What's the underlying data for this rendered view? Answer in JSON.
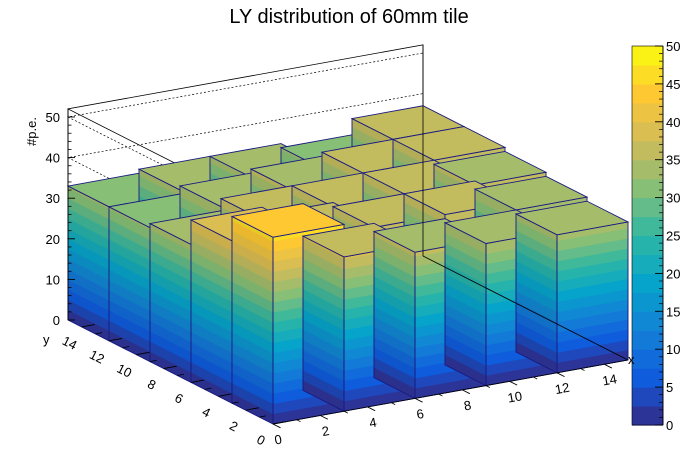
{
  "chart_data": {
    "type": "lego3d",
    "title": "LY distribution of 60mm tile",
    "zlabel": "#p.e.",
    "xlabel": "x",
    "ylabel": "y",
    "xlim": [
      0,
      15
    ],
    "ylim": [
      0,
      15
    ],
    "zlim": [
      0,
      52
    ],
    "x_bins": [
      0,
      3,
      6,
      9,
      12,
      15
    ],
    "y_bins": [
      0,
      3,
      6,
      9,
      12,
      15
    ],
    "x_ticks": [
      "0",
      "2",
      "4",
      "6",
      "8",
      "10",
      "12",
      "14"
    ],
    "y_ticks": [
      "0",
      "2",
      "4",
      "6",
      "8",
      "10",
      "12",
      "14"
    ],
    "z_ticks": [
      "0",
      "10",
      "20",
      "30",
      "40",
      "50"
    ],
    "values": [
      [
        46,
        40,
        34,
        33,
        33
      ],
      [
        38,
        38,
        37,
        35,
        34
      ],
      [
        36,
        37,
        37,
        36,
        34
      ],
      [
        35,
        37,
        37,
        37,
        33
      ],
      [
        34,
        35,
        36,
        37,
        37
      ]
    ],
    "values_note_order": "rows indexed by x bin, columns by y bin",
    "palette": {
      "name": "kBird",
      "min": 0,
      "max": 50,
      "levels": 20,
      "colors": [
        "#352a87",
        "#0f5cdd",
        "#1481d6",
        "#06a4ca",
        "#2eb7a4",
        "#87bf77",
        "#d1bb59",
        "#fec832",
        "#f9fb0e"
      ]
    },
    "colorbar_ticks": [
      "0",
      "5",
      "10",
      "15",
      "20",
      "25",
      "30",
      "35",
      "40",
      "45",
      "50"
    ]
  }
}
